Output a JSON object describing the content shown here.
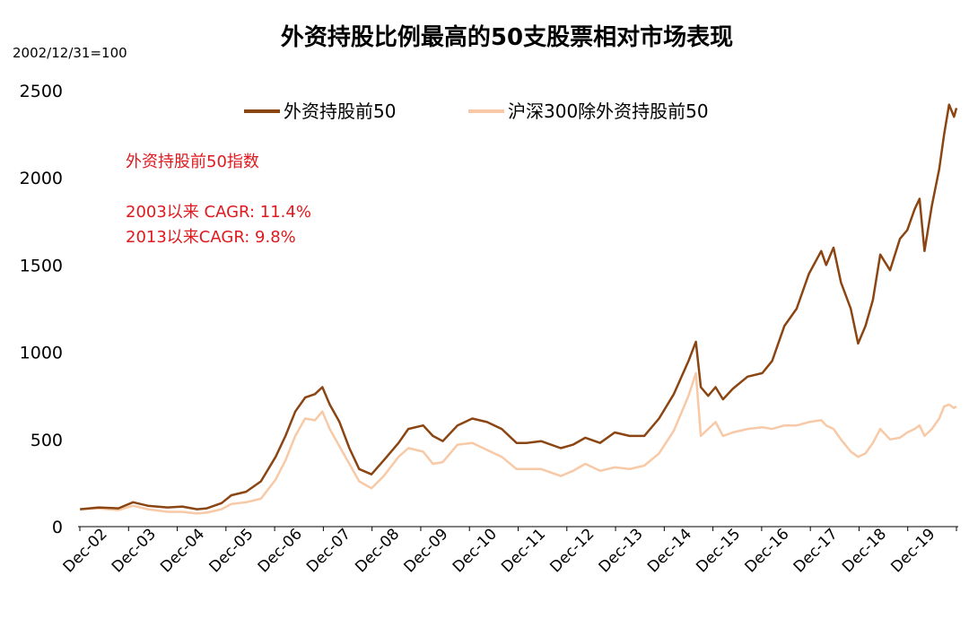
{
  "chart_data": {
    "type": "line",
    "title": "外资持股比例最高的50支股票相对市场表现",
    "unit_label": "2002/12/31=100",
    "ylim": [
      0,
      2500
    ],
    "y_ticks": [
      "0",
      "500",
      "1000",
      "1500",
      "2000",
      "2500"
    ],
    "x_ticks": [
      "Dec-02",
      "Dec-03",
      "Dec-04",
      "Dec-05",
      "Dec-06",
      "Dec-07",
      "Dec-08",
      "Dec-09",
      "Dec-10",
      "Dec-11",
      "Dec-12",
      "Dec-13",
      "Dec-14",
      "Dec-15",
      "Dec-16",
      "Dec-17",
      "Dec-18",
      "Dec-19"
    ],
    "x_range": [
      2002.917,
      2020.75
    ],
    "legend_position": "top",
    "grid": false,
    "annotations": [
      "外资持股前50指数",
      "2003以来 CAGR: 11.4%",
      "2013以来CAGR: 9.8%"
    ],
    "annotation_color": "#e0191e",
    "series": [
      {
        "name": "外资持股前50",
        "color": "#8b4513",
        "points": [
          [
            2002.92,
            100
          ],
          [
            2003.3,
            110
          ],
          [
            2003.7,
            105
          ],
          [
            2004.0,
            140
          ],
          [
            2004.3,
            120
          ],
          [
            2004.7,
            110
          ],
          [
            2005.0,
            115
          ],
          [
            2005.3,
            100
          ],
          [
            2005.5,
            105
          ],
          [
            2005.8,
            135
          ],
          [
            2006.0,
            180
          ],
          [
            2006.3,
            200
          ],
          [
            2006.6,
            260
          ],
          [
            2006.9,
            400
          ],
          [
            2007.1,
            520
          ],
          [
            2007.3,
            660
          ],
          [
            2007.5,
            740
          ],
          [
            2007.7,
            760
          ],
          [
            2007.85,
            800
          ],
          [
            2008.0,
            700
          ],
          [
            2008.2,
            600
          ],
          [
            2008.4,
            450
          ],
          [
            2008.6,
            330
          ],
          [
            2008.85,
            300
          ],
          [
            2009.1,
            380
          ],
          [
            2009.4,
            480
          ],
          [
            2009.6,
            560
          ],
          [
            2009.9,
            580
          ],
          [
            2010.1,
            520
          ],
          [
            2010.3,
            490
          ],
          [
            2010.6,
            580
          ],
          [
            2010.9,
            620
          ],
          [
            2011.2,
            600
          ],
          [
            2011.5,
            560
          ],
          [
            2011.8,
            480
          ],
          [
            2012.0,
            480
          ],
          [
            2012.3,
            490
          ],
          [
            2012.7,
            450
          ],
          [
            2012.95,
            470
          ],
          [
            2013.2,
            510
          ],
          [
            2013.5,
            480
          ],
          [
            2013.8,
            540
          ],
          [
            2014.1,
            520
          ],
          [
            2014.4,
            520
          ],
          [
            2014.7,
            620
          ],
          [
            2015.0,
            760
          ],
          [
            2015.3,
            950
          ],
          [
            2015.45,
            1060
          ],
          [
            2015.55,
            800
          ],
          [
            2015.7,
            750
          ],
          [
            2015.85,
            800
          ],
          [
            2016.0,
            730
          ],
          [
            2016.2,
            790
          ],
          [
            2016.5,
            860
          ],
          [
            2016.8,
            880
          ],
          [
            2017.0,
            950
          ],
          [
            2017.25,
            1150
          ],
          [
            2017.5,
            1250
          ],
          [
            2017.75,
            1450
          ],
          [
            2018.0,
            1580
          ],
          [
            2018.1,
            1500
          ],
          [
            2018.25,
            1600
          ],
          [
            2018.4,
            1400
          ],
          [
            2018.6,
            1250
          ],
          [
            2018.75,
            1050
          ],
          [
            2018.9,
            1150
          ],
          [
            2019.05,
            1300
          ],
          [
            2019.2,
            1560
          ],
          [
            2019.4,
            1470
          ],
          [
            2019.6,
            1650
          ],
          [
            2019.75,
            1700
          ],
          [
            2019.9,
            1820
          ],
          [
            2020.0,
            1880
          ],
          [
            2020.1,
            1580
          ],
          [
            2020.25,
            1840
          ],
          [
            2020.4,
            2050
          ],
          [
            2020.5,
            2250
          ],
          [
            2020.6,
            2420
          ],
          [
            2020.7,
            2350
          ],
          [
            2020.75,
            2400
          ]
        ]
      },
      {
        "name": "沪深300除外资持股前50",
        "color": "#f7c9a6",
        "points": [
          [
            2002.92,
            100
          ],
          [
            2003.3,
            105
          ],
          [
            2003.7,
            95
          ],
          [
            2004.0,
            120
          ],
          [
            2004.3,
            100
          ],
          [
            2004.7,
            85
          ],
          [
            2005.0,
            85
          ],
          [
            2005.3,
            75
          ],
          [
            2005.5,
            80
          ],
          [
            2005.8,
            100
          ],
          [
            2006.0,
            130
          ],
          [
            2006.3,
            140
          ],
          [
            2006.6,
            160
          ],
          [
            2006.9,
            270
          ],
          [
            2007.1,
            380
          ],
          [
            2007.3,
            520
          ],
          [
            2007.5,
            620
          ],
          [
            2007.7,
            610
          ],
          [
            2007.85,
            660
          ],
          [
            2008.0,
            560
          ],
          [
            2008.2,
            460
          ],
          [
            2008.4,
            360
          ],
          [
            2008.6,
            260
          ],
          [
            2008.85,
            220
          ],
          [
            2009.1,
            290
          ],
          [
            2009.4,
            400
          ],
          [
            2009.6,
            450
          ],
          [
            2009.9,
            430
          ],
          [
            2010.1,
            360
          ],
          [
            2010.3,
            370
          ],
          [
            2010.6,
            470
          ],
          [
            2010.9,
            480
          ],
          [
            2011.2,
            440
          ],
          [
            2011.5,
            400
          ],
          [
            2011.8,
            330
          ],
          [
            2012.0,
            330
          ],
          [
            2012.3,
            330
          ],
          [
            2012.7,
            290
          ],
          [
            2012.95,
            320
          ],
          [
            2013.2,
            360
          ],
          [
            2013.5,
            320
          ],
          [
            2013.8,
            340
          ],
          [
            2014.1,
            330
          ],
          [
            2014.4,
            350
          ],
          [
            2014.7,
            420
          ],
          [
            2015.0,
            550
          ],
          [
            2015.3,
            750
          ],
          [
            2015.45,
            880
          ],
          [
            2015.55,
            520
          ],
          [
            2015.7,
            560
          ],
          [
            2015.85,
            600
          ],
          [
            2016.0,
            520
          ],
          [
            2016.2,
            540
          ],
          [
            2016.5,
            560
          ],
          [
            2016.8,
            570
          ],
          [
            2017.0,
            560
          ],
          [
            2017.25,
            580
          ],
          [
            2017.5,
            580
          ],
          [
            2017.75,
            600
          ],
          [
            2018.0,
            610
          ],
          [
            2018.1,
            580
          ],
          [
            2018.25,
            560
          ],
          [
            2018.4,
            500
          ],
          [
            2018.6,
            430
          ],
          [
            2018.75,
            400
          ],
          [
            2018.9,
            420
          ],
          [
            2019.05,
            480
          ],
          [
            2019.2,
            560
          ],
          [
            2019.4,
            500
          ],
          [
            2019.6,
            510
          ],
          [
            2019.75,
            540
          ],
          [
            2019.9,
            560
          ],
          [
            2020.0,
            580
          ],
          [
            2020.1,
            520
          ],
          [
            2020.25,
            560
          ],
          [
            2020.4,
            620
          ],
          [
            2020.5,
            690
          ],
          [
            2020.6,
            700
          ],
          [
            2020.7,
            680
          ],
          [
            2020.75,
            690
          ]
        ]
      }
    ]
  }
}
